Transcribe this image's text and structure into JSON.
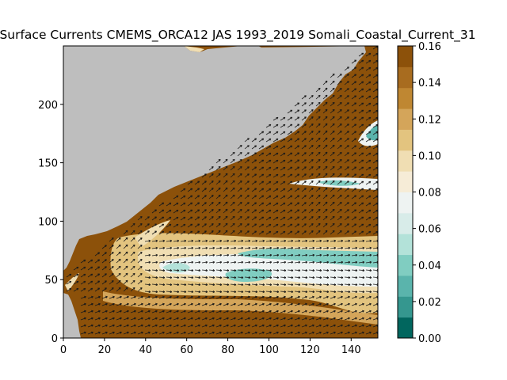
{
  "chart_data": {
    "type": "heatmap",
    "title": "Surface Currents CMEMS_ORCA12 JAS 1993_2019 Somali_Coastal_Current_31",
    "xlabel": "",
    "ylabel": "",
    "xlim": [
      0,
      153
    ],
    "ylim": [
      0,
      250
    ],
    "x_ticks": [
      "0",
      "20",
      "40",
      "60",
      "80",
      "100",
      "120",
      "140"
    ],
    "y_ticks": [
      "0",
      "50",
      "100",
      "150",
      "200"
    ],
    "grid": false,
    "land_color": "#bebebe",
    "overlay": "current velocity arrows (quiver)",
    "colorbar": {
      "vmin": 0.0,
      "vmax": 0.16,
      "ticks": [
        "0.00",
        "0.02",
        "0.04",
        "0.06",
        "0.08",
        "0.10",
        "0.12",
        "0.14",
        "0.16"
      ],
      "colors": [
        "#01665e",
        "#35978f",
        "#5ab4ac",
        "#80cdc1",
        "#b3e2d9",
        "#d8ece9",
        "#eef3f2",
        "#f6ecd7",
        "#f0deb3",
        "#e3c47f",
        "#d4a55a",
        "#bf8732",
        "#a86c1f",
        "#8c510a"
      ]
    }
  }
}
